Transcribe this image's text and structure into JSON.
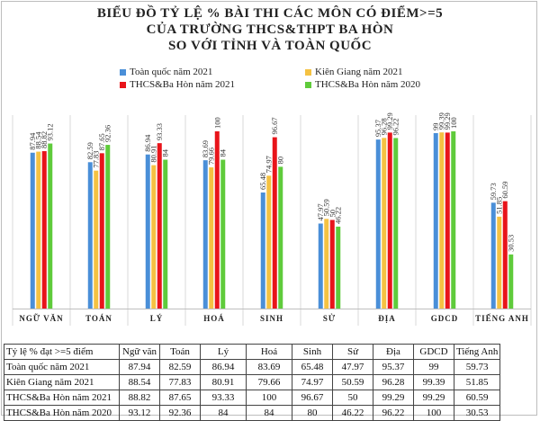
{
  "title": {
    "line1": "BIỂU ĐỒ TỶ LỆ % BÀI THI CÁC MÔN CÓ ĐIỂM>=5",
    "line2": "CỦA TRƯỜNG THCS&THPT BA HÒN",
    "line3": "SO VỚI TỈNH VÀ TOÀN QUỐC"
  },
  "colors": {
    "toan_quoc_2021": "#4a8fd8",
    "kien_giang_2021": "#f5c242",
    "thcs_2021": "#e8141a",
    "thcs_2020": "#5fcb3b"
  },
  "chart_data": {
    "type": "bar",
    "categories": [
      "NGỮ VĂN",
      "TOÁN",
      "LÝ",
      "HOÁ",
      "SINH",
      "SỬ",
      "ĐỊA",
      "GDCD",
      "TIẾNG ANH"
    ],
    "series": [
      {
        "name": "Toàn quốc năm 2021",
        "values": [
          87.94,
          82.59,
          86.94,
          83.69,
          65.48,
          47.97,
          95.37,
          99,
          59.73
        ]
      },
      {
        "name": "Kiên Giang năm 2021",
        "values": [
          88.54,
          77.83,
          80.91,
          79.66,
          74.97,
          50.59,
          96.28,
          99.39,
          51.85
        ]
      },
      {
        "name": "THCS&Ba Hòn năm 2021",
        "values": [
          88.82,
          87.65,
          93.33,
          100,
          96.67,
          50,
          99.29,
          99.29,
          60.59
        ]
      },
      {
        "name": "THCS&Ba Hòn năm 2020",
        "values": [
          93.12,
          92.36,
          84,
          84,
          80,
          46.22,
          96.22,
          100,
          30.53
        ]
      }
    ],
    "value_labels": [
      [
        "87.94",
        "82.59",
        "86.94",
        "83.69",
        "65.48",
        "47.97",
        "95.37",
        "99",
        "59.73"
      ],
      [
        "88.54",
        "77.83",
        "80.91",
        "79.66",
        "74.97",
        "50.59",
        "96.28",
        "99.39",
        "51.85"
      ],
      [
        "88.82",
        "87.65",
        "93.33",
        "100",
        "96.67",
        "50",
        "99.29",
        "99.29",
        "60.59"
      ],
      [
        "93.12",
        "92.36",
        "84",
        "84",
        "80",
        "46.22",
        "96.22",
        "100",
        "30.53"
      ]
    ],
    "ylim": [
      0,
      100
    ],
    "legend_position": "top",
    "grid": false
  },
  "table": {
    "header": [
      "Tỷ lệ % đạt >=5 điểm",
      "Ngữ văn",
      "Toán",
      "Lý",
      "Hoá",
      "Sinh",
      "Sử",
      "Địa",
      "GDCD",
      "Tiếng Anh"
    ],
    "rows": [
      [
        "Toàn quốc năm 2021",
        "87.94",
        "82.59",
        "86.94",
        "83.69",
        "65.48",
        "47.97",
        "95.37",
        "99",
        "59.73"
      ],
      [
        "Kiên Giang năm 2021",
        "88.54",
        "77.83",
        "80.91",
        "79.66",
        "74.97",
        "50.59",
        "96.28",
        "99.39",
        "51.85"
      ],
      [
        "THCS&Ba Hòn năm 2021",
        "88.82",
        "87.65",
        "93.33",
        "100",
        "96.67",
        "50",
        "99.29",
        "99.29",
        "60.59"
      ],
      [
        "THCS&Ba Hòn năm 2020",
        "93.12",
        "92.36",
        "84",
        "84",
        "80",
        "46.22",
        "96.22",
        "100",
        "30.53"
      ]
    ]
  }
}
